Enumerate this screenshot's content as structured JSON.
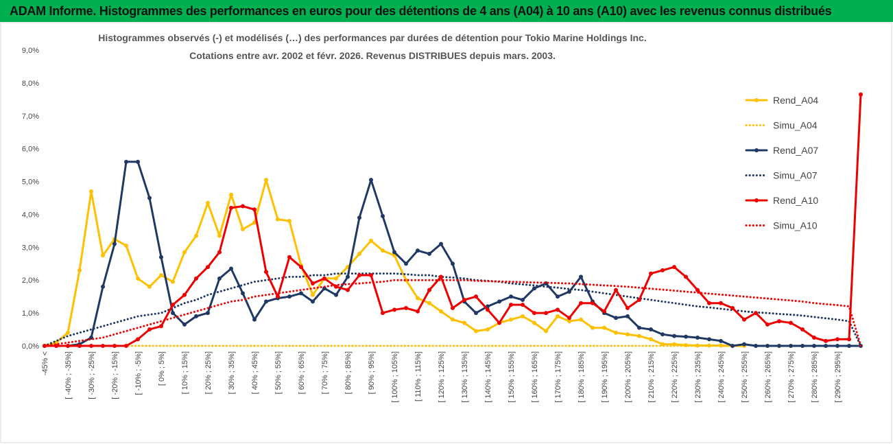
{
  "chart_data": {
    "type": "line",
    "title": "ADAM Informe. Histogrammes des performances en euros pour des détentions de 4 ans (A04) à 10 ans (A10) avec les revenus connus distribués",
    "subtitle": [
      "Histogrammes observés (-)  et modélisés (…) des performances par durées de détention pour Tokio Marine Holdings Inc.",
      "Cotations entre avr. 2002 et févr. 2026. Revenus DISTRIBUES depuis mars. 2003."
    ],
    "categories": [
      "-45% <",
      null,
      "[ -40% ; -35%]",
      null,
      "[ -30% ; -25%]",
      null,
      "[ -20% ; -15%]",
      null,
      "[ -10% ; -5%]",
      null,
      "[ 0% ; 5%]",
      null,
      "[ 10% ; 15%]",
      null,
      "[ 20% ; 25%]",
      null,
      "[ 30% ; 35%]",
      null,
      "[ 40% ; 45%]",
      null,
      "[ 50% ; 55%]",
      null,
      "[ 60% ; 65%]",
      null,
      "[ 70% ; 75%]",
      null,
      "[ 80% ; 85%]",
      null,
      "[ 90% ; 95%]",
      null,
      "[ 100% ; 105%]",
      null,
      "[ 110% ; 115%]",
      null,
      "[ 120% ; 125%]",
      null,
      "[ 130% ; 135%]",
      null,
      "[ 140% ; 145%]",
      null,
      "[ 150% ; 155%]",
      null,
      "[ 160% ; 165%]",
      null,
      "[ 170% ; 175%]",
      null,
      "[ 180% ; 185%]",
      null,
      "[ 190% ; 195%]",
      null,
      "[ 200% ; 205%]",
      null,
      "[ 210% ; 215%]",
      null,
      "[ 220% ; 225%]",
      null,
      "[ 230% ; 235%]",
      null,
      "[ 240% ; 245%]",
      null,
      "[ 250% ; 255%]",
      null,
      "[ 260% ; 265%]",
      null,
      "[ 270% ; 275%]",
      null,
      "[ 280% ; 285%]",
      null,
      "[ 290% ; 295%]",
      null,
      null
    ],
    "ylim": [
      0,
      9
    ],
    "yticks": [
      {
        "value": 0,
        "label": "0,0%"
      },
      {
        "value": 1,
        "label": "1,0%"
      },
      {
        "value": 2,
        "label": "2,0%"
      },
      {
        "value": 3,
        "label": "3,0%"
      },
      {
        "value": 4,
        "label": "4,0%"
      },
      {
        "value": 5,
        "label": "5,0%"
      },
      {
        "value": 6,
        "label": "6,0%"
      },
      {
        "value": 7,
        "label": "7,0%"
      },
      {
        "value": 8,
        "label": "8,0%"
      },
      {
        "value": 9,
        "label": "9,0%"
      }
    ],
    "grid": false,
    "legend": "right",
    "series": [
      {
        "name": "Rend_A04",
        "color": "#ffc000",
        "style": "solid",
        "values": [
          0,
          0.1,
          0.4,
          2.3,
          4.7,
          2.75,
          3.25,
          3.05,
          2.05,
          1.8,
          2.15,
          1.95,
          2.85,
          3.35,
          4.35,
          3.35,
          4.6,
          3.55,
          3.75,
          5.05,
          3.85,
          3.8,
          2.45,
          1.55,
          2.05,
          2.05,
          2.4,
          2.8,
          3.2,
          2.9,
          2.75,
          2.0,
          1.45,
          1.3,
          1.05,
          0.8,
          0.7,
          0.45,
          0.5,
          0.7,
          0.8,
          0.9,
          0.7,
          0.45,
          0.9,
          0.75,
          0.8,
          0.55,
          0.55,
          0.4,
          0.35,
          0.3,
          0.2,
          0.05,
          0.05,
          0.02,
          0.01,
          0.01,
          0.01,
          0,
          0,
          null,
          null,
          null,
          null,
          null,
          null,
          null,
          null,
          null,
          null
        ]
      },
      {
        "name": "Simu_A04",
        "color": "#ffc000",
        "style": "dotted",
        "values": [
          0,
          0,
          0,
          0,
          0,
          0,
          0,
          0,
          0,
          0,
          0,
          0,
          0,
          0,
          0,
          0,
          0,
          0,
          0,
          0,
          0,
          0,
          0,
          0,
          0,
          0,
          0,
          0,
          0,
          0,
          0,
          0,
          0,
          0,
          0,
          0,
          0,
          0,
          0,
          0,
          0,
          0,
          0,
          0,
          0,
          0,
          0,
          0,
          0,
          0,
          0,
          0,
          0,
          0,
          0,
          0,
          0,
          0,
          0,
          0,
          0,
          null,
          null,
          null,
          null,
          null,
          null,
          null,
          null,
          null,
          null
        ]
      },
      {
        "name": "Rend_A07",
        "color": "#203864",
        "style": "solid",
        "values": [
          0,
          0,
          0,
          0.05,
          0.25,
          1.8,
          3.1,
          5.6,
          5.6,
          4.5,
          2.7,
          1.0,
          0.65,
          0.9,
          1.0,
          2.05,
          2.35,
          1.6,
          0.8,
          1.35,
          1.45,
          1.5,
          1.6,
          1.35,
          1.75,
          1.55,
          2.1,
          3.9,
          5.05,
          3.95,
          2.85,
          2.5,
          2.9,
          2.8,
          3.1,
          2.5,
          1.35,
          1.0,
          1.2,
          1.35,
          1.5,
          1.4,
          1.75,
          1.9,
          1.5,
          1.65,
          2.1,
          1.35,
          1.0,
          0.85,
          0.9,
          0.55,
          0.5,
          0.35,
          0.3,
          0.28,
          0.25,
          0.2,
          0.15,
          0,
          0.05,
          0,
          0,
          0,
          0,
          0,
          0,
          0,
          0,
          0,
          0
        ]
      },
      {
        "name": "Simu_A07",
        "color": "#203864",
        "style": "dotted",
        "values": [
          0,
          0.15,
          0.3,
          0.4,
          0.5,
          0.6,
          0.7,
          0.8,
          0.9,
          0.95,
          1.0,
          1.15,
          1.3,
          1.4,
          1.55,
          1.65,
          1.75,
          1.85,
          1.95,
          2.0,
          2.05,
          2.1,
          2.1,
          2.15,
          2.15,
          2.2,
          2.2,
          2.2,
          2.2,
          2.2,
          2.2,
          2.18,
          2.15,
          2.15,
          2.1,
          2.08,
          2.05,
          2.0,
          1.98,
          1.95,
          1.9,
          1.87,
          1.84,
          1.8,
          1.77,
          1.73,
          1.7,
          1.65,
          1.6,
          1.55,
          1.5,
          1.45,
          1.4,
          1.35,
          1.3,
          1.25,
          1.2,
          1.17,
          1.13,
          1.09,
          1.05,
          1.02,
          1.0,
          0.97,
          0.95,
          0.92,
          0.88,
          0.84,
          0.8,
          0.75,
          0
        ]
      },
      {
        "name": "Rend_A10",
        "color": "#ee0000",
        "style": "solid",
        "values": [
          0,
          0,
          0,
          0,
          0,
          0,
          0,
          0,
          0.2,
          0.5,
          0.6,
          1.25,
          1.55,
          2.05,
          2.4,
          2.85,
          4.2,
          4.25,
          4.15,
          2.25,
          1.5,
          2.7,
          2.4,
          1.9,
          2.05,
          1.8,
          1.7,
          2.15,
          2.15,
          1.0,
          1.1,
          1.15,
          1.05,
          1.7,
          2.1,
          1.15,
          1.4,
          1.5,
          1.1,
          0.7,
          1.25,
          1.25,
          1.0,
          1.0,
          1.1,
          0.85,
          1.3,
          1.3,
          1.05,
          1.7,
          1.15,
          1.4,
          2.2,
          2.3,
          2.4,
          2.1,
          1.7,
          1.3,
          1.3,
          1.15,
          0.8,
          1.0,
          0.65,
          0.75,
          0.7,
          0.5,
          0.25,
          0.15,
          0.2,
          0.2,
          7.65
        ]
      },
      {
        "name": "Simu_A10",
        "color": "#ee0000",
        "style": "dotted",
        "values": [
          0,
          0.05,
          0.1,
          0.15,
          0.2,
          0.25,
          0.35,
          0.45,
          0.55,
          0.65,
          0.75,
          0.85,
          0.95,
          1.05,
          1.15,
          1.25,
          1.35,
          1.4,
          1.5,
          1.55,
          1.6,
          1.65,
          1.7,
          1.75,
          1.8,
          1.85,
          1.88,
          1.9,
          1.93,
          1.95,
          2.0,
          2.0,
          2.0,
          2.0,
          2.0,
          2.0,
          2.0,
          1.98,
          1.97,
          1.96,
          1.95,
          1.94,
          1.93,
          1.92,
          1.91,
          1.9,
          1.88,
          1.86,
          1.84,
          1.82,
          1.8,
          1.77,
          1.74,
          1.71,
          1.68,
          1.65,
          1.62,
          1.59,
          1.56,
          1.53,
          1.5,
          1.47,
          1.44,
          1.41,
          1.38,
          1.35,
          1.3,
          1.27,
          1.24,
          1.2,
          0
        ]
      }
    ]
  }
}
